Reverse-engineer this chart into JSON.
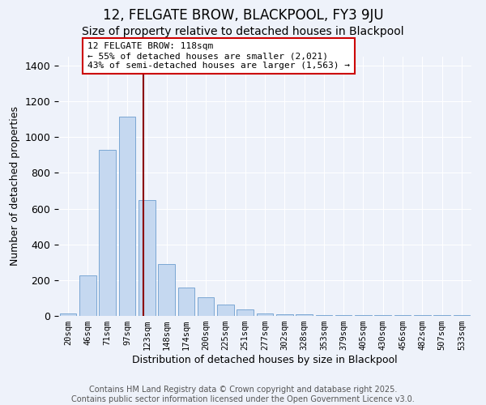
{
  "title": "12, FELGATE BROW, BLACKPOOL, FY3 9JU",
  "subtitle": "Size of property relative to detached houses in Blackpool",
  "xlabel": "Distribution of detached houses by size in Blackpool",
  "ylabel": "Number of detached properties",
  "categories": [
    "20sqm",
    "46sqm",
    "71sqm",
    "97sqm",
    "123sqm",
    "148sqm",
    "174sqm",
    "200sqm",
    "225sqm",
    "251sqm",
    "277sqm",
    "302sqm",
    "328sqm",
    "353sqm",
    "379sqm",
    "405sqm",
    "430sqm",
    "456sqm",
    "482sqm",
    "507sqm",
    "533sqm"
  ],
  "values": [
    15,
    225,
    930,
    1115,
    650,
    290,
    160,
    105,
    65,
    35,
    15,
    10,
    7,
    5,
    5,
    5,
    5,
    3,
    3,
    3,
    5
  ],
  "bar_color": "#c5d8f0",
  "bar_edge_color": "#7ba7d4",
  "annotation_line0": "12 FELGATE BROW: 118sqm",
  "annotation_line1": "← 55% of detached houses are smaller (2,021)",
  "annotation_line2": "43% of semi-detached houses are larger (1,563) →",
  "annotation_box_color": "#ffffff",
  "annotation_box_edge": "#cc0000",
  "vline_color": "#8b0000",
  "vline_x_index": 4,
  "ylim": [
    0,
    1450
  ],
  "background_color": "#eef2fa",
  "grid_color": "#ffffff",
  "footer_line1": "Contains HM Land Registry data © Crown copyright and database right 2025.",
  "footer_line2": "Contains public sector information licensed under the Open Government Licence v3.0.",
  "title_fontsize": 12,
  "subtitle_fontsize": 10,
  "ylabel_fontsize": 9,
  "xlabel_fontsize": 9,
  "tick_fontsize": 7.5,
  "annotation_fontsize": 8,
  "footer_fontsize": 7
}
